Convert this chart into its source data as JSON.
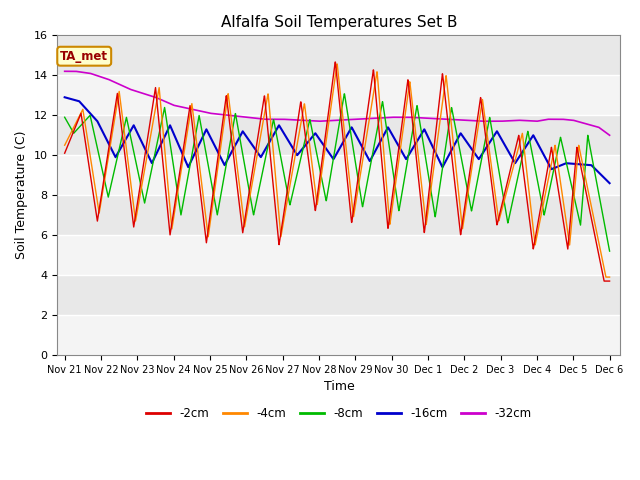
{
  "title": "Alfalfa Soil Temperatures Set B",
  "xlabel": "Time",
  "ylabel": "Soil Temperature (C)",
  "ylim": [
    0,
    16
  ],
  "background_color": "#e8e8e8",
  "figure_color": "#ffffff",
  "annotation_text": "TA_met",
  "annotation_bg": "#ffffcc",
  "annotation_border": "#cc8800",
  "series": {
    "neg2cm": {
      "label": "-2cm",
      "color": "#dd0000",
      "linewidth": 1.0
    },
    "neg4cm": {
      "label": "-4cm",
      "color": "#ff8800",
      "linewidth": 1.0
    },
    "neg8cm": {
      "label": "-8cm",
      "color": "#00bb00",
      "linewidth": 1.0
    },
    "neg16cm": {
      "label": "-16cm",
      "color": "#0000cc",
      "linewidth": 1.5
    },
    "neg32cm": {
      "label": "-32cm",
      "color": "#cc00cc",
      "linewidth": 1.2
    }
  },
  "xtick_labels": [
    "Nov 21",
    "Nov 22",
    "Nov 23",
    "Nov 24",
    "Nov 25",
    "Nov 26",
    "Nov 27",
    "Nov 28",
    "Nov 29",
    "Nov 30",
    "Dec 1",
    "Dec 2",
    "Dec 3",
    "Dec 4",
    "Dec 5",
    "Dec 6"
  ],
  "xtick_positions": [
    0,
    1,
    2,
    3,
    4,
    5,
    6,
    7,
    8,
    9,
    10,
    11,
    12,
    13,
    14,
    15
  ],
  "legend_entries": [
    "-2cm",
    "-4cm",
    "-8cm",
    "-16cm",
    "-32cm"
  ],
  "legend_colors": [
    "#dd0000",
    "#ff8800",
    "#00bb00",
    "#0000cc",
    "#cc00cc"
  ]
}
